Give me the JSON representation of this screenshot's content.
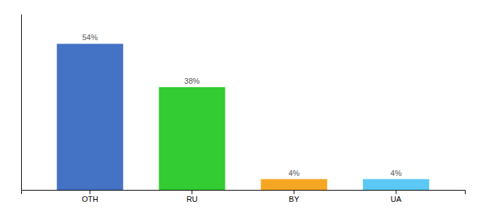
{
  "chart_data": {
    "type": "bar",
    "categories": [
      "OTH",
      "RU",
      "BY",
      "UA"
    ],
    "values": [
      54,
      38,
      4,
      4
    ],
    "value_labels": [
      "54%",
      "38%",
      "4%",
      "4%"
    ],
    "colors": [
      "#4472c4",
      "#33cc33",
      "#f5a623",
      "#5bc8f5"
    ],
    "ylim": [
      0,
      65
    ],
    "data_labels": true,
    "tick_labels": "x",
    "grid": false
  }
}
